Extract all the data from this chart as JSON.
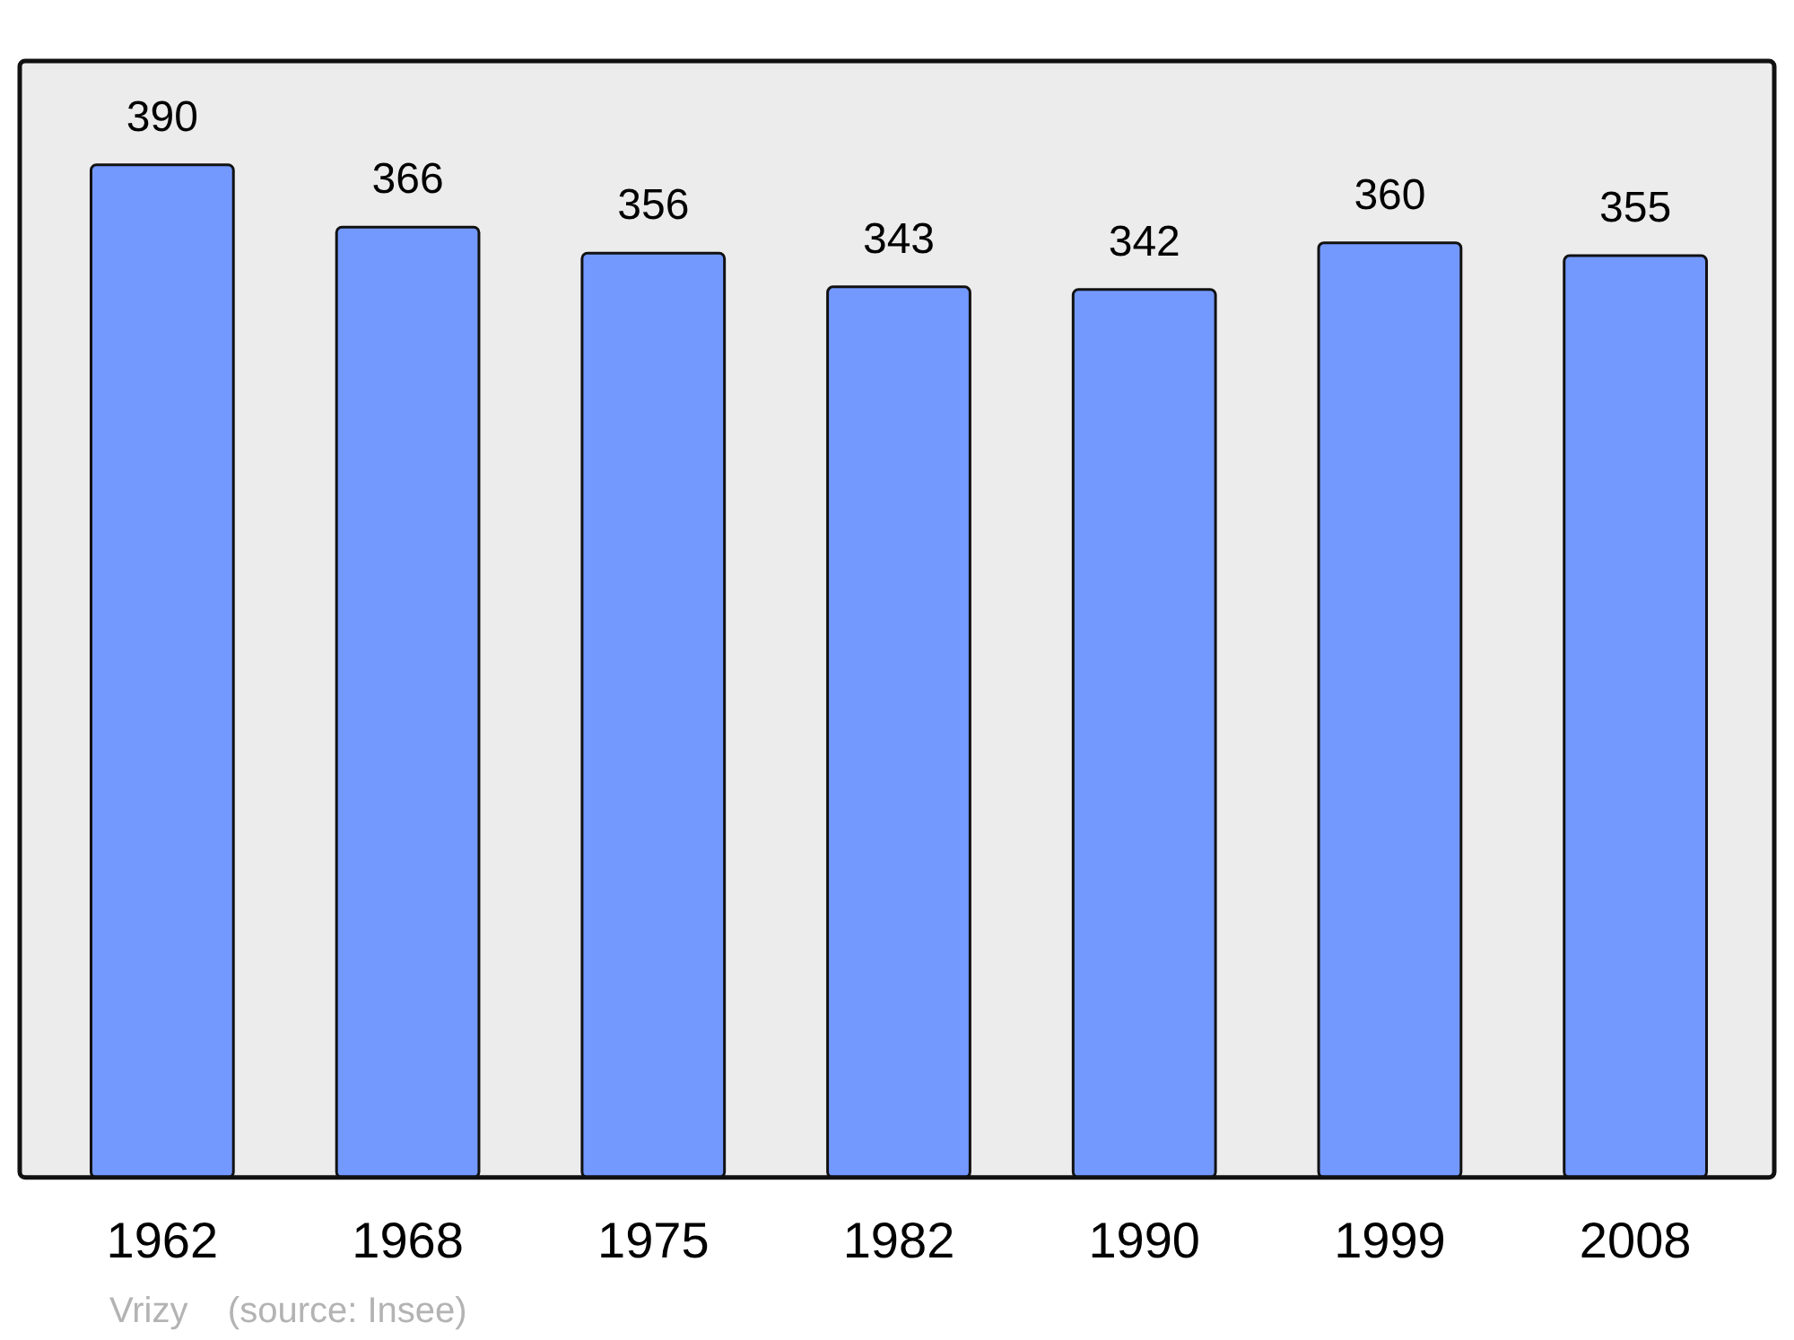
{
  "chart_data": {
    "type": "bar",
    "categories": [
      "1962",
      "1968",
      "1975",
      "1982",
      "1990",
      "1999",
      "2008"
    ],
    "values": [
      390,
      366,
      356,
      343,
      342,
      360,
      355
    ],
    "color": "#7399ff",
    "ylim": [
      0,
      430
    ],
    "data_labels": true,
    "annotations": [
      "Vrizy    (source: Insee)"
    ]
  }
}
